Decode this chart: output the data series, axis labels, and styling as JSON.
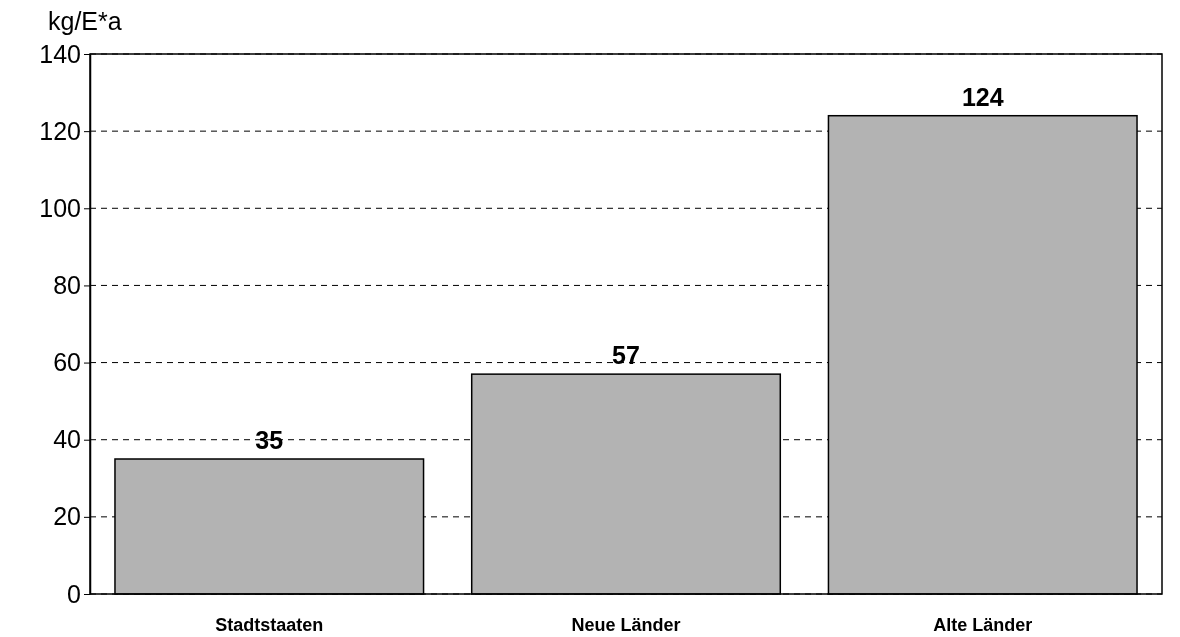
{
  "chart_data": {
    "type": "bar",
    "ylabel": "kg/E*a",
    "categories": [
      "Stadtstaaten",
      "Neue Länder",
      "Alte Länder"
    ],
    "values": [
      35,
      57,
      124
    ],
    "color": "#b3b3b3",
    "ylim": [
      0,
      140
    ],
    "yticks": [
      0,
      20,
      40,
      60,
      80,
      100,
      120,
      140
    ],
    "grid": "y",
    "data_labels": true
  }
}
